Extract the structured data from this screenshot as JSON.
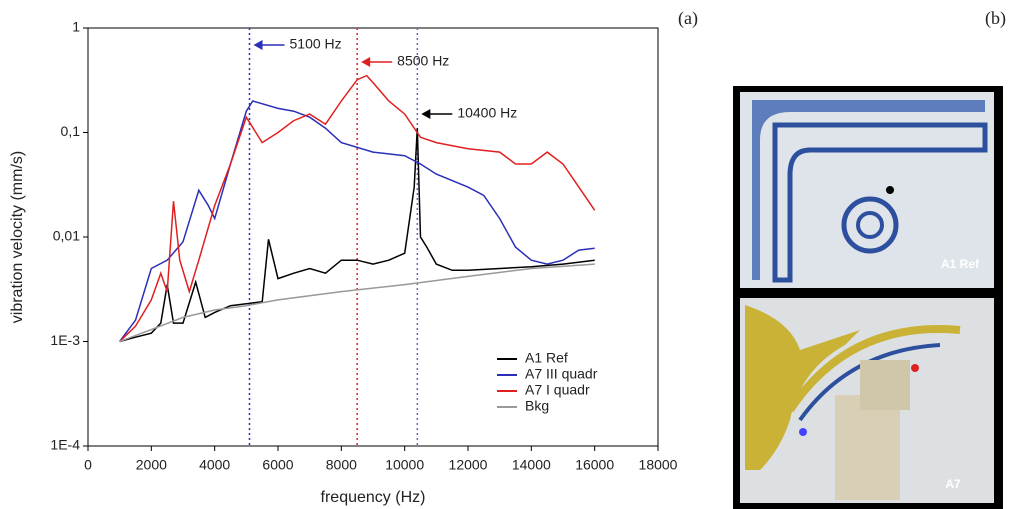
{
  "chart_data": {
    "type": "line",
    "xlabel": "frequency (Hz)",
    "ylabel": "vibration velocity (mm/s)",
    "xlim": [
      0,
      18000
    ],
    "ylim": [
      0.0001,
      1
    ],
    "log_y": true,
    "xticks": [
      0,
      2000,
      4000,
      6000,
      8000,
      10000,
      12000,
      14000,
      16000,
      18000
    ],
    "yticks": [
      {
        "value": 0.0001,
        "label": "1E-4"
      },
      {
        "value": 0.001,
        "label": "1E-3"
      },
      {
        "value": 0.01,
        "label": "0,01"
      },
      {
        "value": 0.1,
        "label": "0,1"
      },
      1
    ],
    "legend": "lower right",
    "series": [
      {
        "name": "A1 Ref",
        "color": "#000000",
        "x": [
          1000,
          1500,
          2000,
          2300,
          2500,
          2700,
          3000,
          3400,
          3700,
          4000,
          4500,
          5000,
          5500,
          5700,
          6000,
          6500,
          7000,
          7500,
          8000,
          8500,
          9000,
          9500,
          10000,
          10300,
          10400,
          10500,
          10700,
          11000,
          11500,
          12000,
          13000,
          14000,
          15000,
          16000
        ],
        "values": [
          0.001,
          0.0011,
          0.0012,
          0.0015,
          0.0035,
          0.0015,
          0.0015,
          0.0037,
          0.0017,
          0.0019,
          0.0022,
          0.0023,
          0.0024,
          0.0095,
          0.004,
          0.0045,
          0.005,
          0.0045,
          0.006,
          0.006,
          0.0055,
          0.006,
          0.007,
          0.03,
          0.11,
          0.01,
          0.008,
          0.0055,
          0.0048,
          0.0048,
          0.005,
          0.0052,
          0.0055,
          0.006
        ]
      },
      {
        "name": "A7 III quadr",
        "color": "#2b2fb8",
        "x": [
          1000,
          1500,
          2000,
          2500,
          3000,
          3500,
          3800,
          4000,
          4500,
          5000,
          5200,
          6000,
          6500,
          7000,
          7500,
          8000,
          9000,
          10000,
          10500,
          11000,
          12000,
          12500,
          13000,
          13500,
          14000,
          14500,
          15000,
          15500,
          16000
        ],
        "values": [
          0.001,
          0.0016,
          0.005,
          0.006,
          0.009,
          0.028,
          0.02,
          0.015,
          0.05,
          0.16,
          0.2,
          0.17,
          0.16,
          0.14,
          0.11,
          0.08,
          0.065,
          0.06,
          0.05,
          0.04,
          0.03,
          0.025,
          0.015,
          0.008,
          0.006,
          0.0055,
          0.006,
          0.0075,
          0.0078
        ]
      },
      {
        "name": "A7 I quadr",
        "color": "#e02020",
        "x": [
          1000,
          1500,
          2000,
          2300,
          2500,
          2700,
          2900,
          3200,
          3500,
          4000,
          4500,
          5000,
          5500,
          6000,
          6500,
          7000,
          7500,
          8000,
          8500,
          8800,
          9000,
          9500,
          10000,
          10500,
          11000,
          12000,
          13000,
          13500,
          14000,
          14500,
          15000,
          15500,
          16000
        ],
        "values": [
          0.001,
          0.0014,
          0.0025,
          0.0045,
          0.003,
          0.022,
          0.006,
          0.003,
          0.006,
          0.02,
          0.05,
          0.14,
          0.08,
          0.1,
          0.13,
          0.15,
          0.12,
          0.2,
          0.32,
          0.35,
          0.3,
          0.2,
          0.15,
          0.09,
          0.08,
          0.07,
          0.065,
          0.05,
          0.05,
          0.065,
          0.05,
          0.03,
          0.018
        ]
      },
      {
        "name": "Bkg",
        "color": "#999999",
        "x": [
          1000,
          2000,
          3000,
          4000,
          5000,
          6000,
          8000,
          10000,
          12000,
          14000,
          16000
        ],
        "values": [
          0.001,
          0.0013,
          0.0017,
          0.002,
          0.0022,
          0.0025,
          0.003,
          0.0035,
          0.0042,
          0.005,
          0.0055
        ]
      }
    ],
    "annotations": [
      {
        "text": "5100 Hz",
        "x": 5100,
        "color": "#2b2fb8"
      },
      {
        "text": "8500 Hz",
        "x": 8500,
        "color": "#e02020"
      },
      {
        "text": "10400 Hz",
        "x": 10400,
        "color": "#000000",
        "line_color": "#6a6ab0"
      }
    ]
  },
  "panel_labels": [
    "(a)",
    "(b)"
  ],
  "photos": [
    {
      "label": "A1 Ref"
    },
    {
      "label": "A7"
    }
  ]
}
